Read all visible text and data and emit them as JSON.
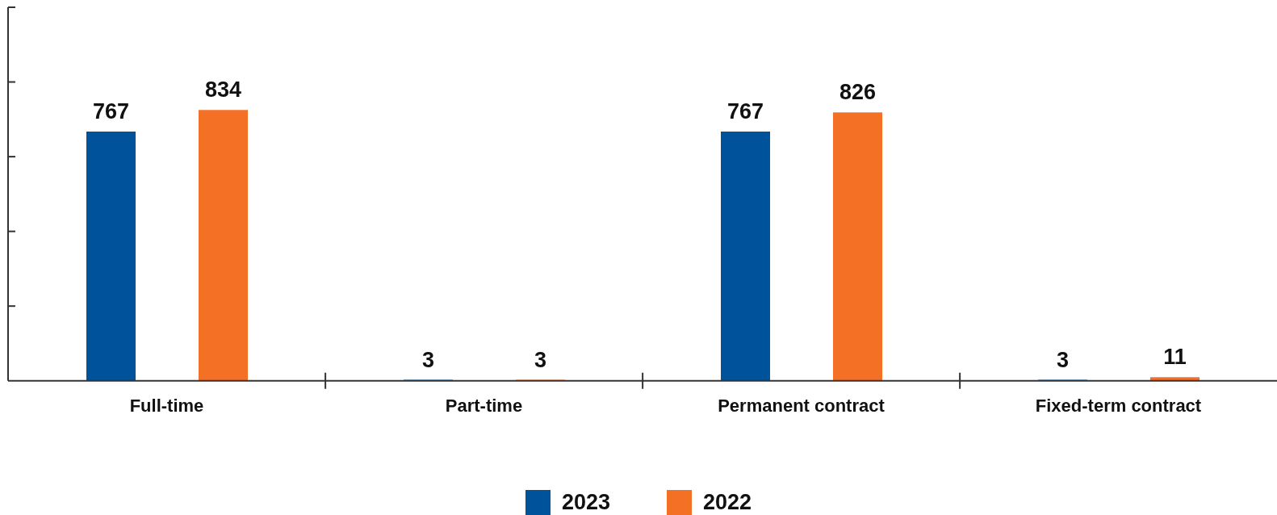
{
  "chart_data": {
    "type": "bar",
    "categories": [
      "Full-time",
      "Part-time",
      "Permanent contract",
      "Fixed-term contract"
    ],
    "series": [
      {
        "name": "2023",
        "color": "#00529b",
        "values": [
          767,
          3,
          767,
          3
        ]
      },
      {
        "name": "2022",
        "color": "#f37024",
        "values": [
          834,
          3,
          826,
          11
        ]
      }
    ],
    "ylim": [
      0,
      1150
    ],
    "yticks": [
      {
        "value": 230,
        "label": null
      },
      {
        "value": 460,
        "label": null
      },
      {
        "value": 690,
        "label": null
      },
      {
        "value": 920,
        "label": null
      },
      {
        "value": 1150,
        "label": null
      }
    ],
    "tick_labels": "x",
    "data_labels": true,
    "legend": "bottom"
  }
}
